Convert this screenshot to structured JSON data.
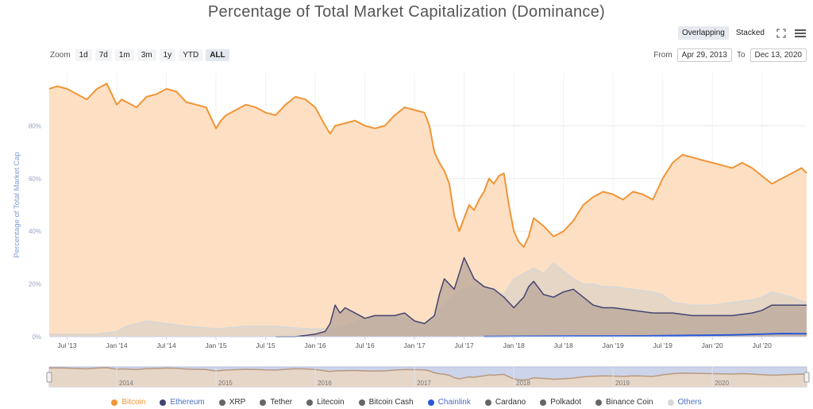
{
  "header": {
    "title": "Percentage of Total Market Capitalization (Dominance)"
  },
  "toolbar": {
    "modes": [
      "Overlapping",
      "Stacked"
    ],
    "active_mode": "Overlapping",
    "fullscreen_icon": "expand-icon",
    "menu_icon": "hamburger-menu-icon"
  },
  "zoom": {
    "label": "Zoom",
    "buttons": [
      "1d",
      "7d",
      "1m",
      "3m",
      "1y",
      "YTD",
      "ALL"
    ],
    "selected": "ALL"
  },
  "range": {
    "from_label": "From",
    "from_value": "Apr 29, 2013",
    "to_label": "To",
    "to_value": "Dec 13, 2020"
  },
  "colors": {
    "bitcoin": "#f09536",
    "bitcoin_fill": "#fde0c4",
    "ethereum": "#434470",
    "others": "#d7d7d7",
    "chainlink": "#2a5ad7",
    "grid": "#e8e8e8",
    "axis_text": "#9aa3c7"
  },
  "chart_data": {
    "type": "area",
    "title": "Percentage of Total Market Capitalization (Dominance)",
    "ylabel": "Percentage of Total Market Cap",
    "ylim": [
      0,
      100
    ],
    "y_ticks": [
      "0%",
      "20%",
      "40%",
      "60%",
      "80%"
    ],
    "y_tick_values": [
      0,
      20,
      40,
      60,
      80
    ],
    "x_ticks": [
      "Jul '13",
      "Jan '14",
      "Jul '14",
      "Jan '15",
      "Jul '15",
      "Jan '16",
      "Jul '16",
      "Jan '17",
      "Jul '17",
      "Jan '18",
      "Jul '18",
      "Jan '19",
      "Jul '19",
      "Jan '20",
      "Jul '20"
    ],
    "x_tick_values": [
      2013.5,
      2014.0,
      2014.5,
      2015.0,
      2015.5,
      2016.0,
      2016.5,
      2017.0,
      2017.5,
      2018.0,
      2018.5,
      2019.0,
      2019.5,
      2020.0,
      2020.5
    ],
    "xlim": [
      2013.32,
      2020.95
    ],
    "navigator_years": [
      "2014",
      "2015",
      "2016",
      "2017",
      "2018",
      "2019",
      "2020"
    ],
    "navigator_year_values": [
      2014,
      2015,
      2016,
      2017,
      2018,
      2019,
      2020
    ],
    "series": [
      {
        "name": "Bitcoin",
        "color": "#f09536",
        "x": [
          2013.32,
          2013.4,
          2013.5,
          2013.6,
          2013.7,
          2013.8,
          2013.9,
          2014.0,
          2014.05,
          2014.1,
          2014.2,
          2014.3,
          2014.4,
          2014.5,
          2014.6,
          2014.7,
          2014.8,
          2014.9,
          2015.0,
          2015.05,
          2015.1,
          2015.2,
          2015.3,
          2015.4,
          2015.5,
          2015.6,
          2015.7,
          2015.8,
          2015.9,
          2016.0,
          2016.1,
          2016.15,
          2016.2,
          2016.3,
          2016.4,
          2016.5,
          2016.6,
          2016.7,
          2016.8,
          2016.9,
          2017.0,
          2017.1,
          2017.15,
          2017.2,
          2017.25,
          2017.3,
          2017.35,
          2017.4,
          2017.45,
          2017.5,
          2017.55,
          2017.6,
          2017.65,
          2017.7,
          2017.75,
          2017.8,
          2017.85,
          2017.9,
          2017.95,
          2018.0,
          2018.05,
          2018.1,
          2018.15,
          2018.2,
          2018.3,
          2018.4,
          2018.5,
          2018.6,
          2018.7,
          2018.8,
          2018.9,
          2019.0,
          2019.1,
          2019.2,
          2019.3,
          2019.4,
          2019.5,
          2019.6,
          2019.7,
          2019.8,
          2019.9,
          2020.0,
          2020.1,
          2020.2,
          2020.3,
          2020.4,
          2020.5,
          2020.6,
          2020.7,
          2020.8,
          2020.9,
          2020.95
        ],
        "values": [
          94,
          95,
          94,
          92,
          90,
          94,
          96,
          88,
          90,
          89,
          87,
          91,
          92,
          94,
          93,
          89,
          88,
          87,
          79,
          82,
          84,
          86,
          88,
          87,
          85,
          84,
          88,
          91,
          90,
          87,
          80,
          77,
          80,
          81,
          82,
          80,
          79,
          80,
          84,
          87,
          86,
          85,
          80,
          70,
          66,
          63,
          58,
          46,
          40,
          45,
          50,
          48,
          52,
          55,
          60,
          58,
          61,
          62,
          50,
          40,
          36,
          34,
          38,
          45,
          42,
          38,
          40,
          44,
          50,
          53,
          55,
          54,
          52,
          55,
          54,
          52,
          60,
          66,
          69,
          68,
          67,
          66,
          65,
          64,
          66,
          64,
          61,
          58,
          60,
          62,
          64,
          62
        ]
      },
      {
        "name": "Others",
        "color": "#d7d7d7",
        "x": [
          2013.32,
          2013.8,
          2014.0,
          2014.1,
          2014.3,
          2014.5,
          2014.7,
          2015.0,
          2015.3,
          2015.6,
          2015.9,
          2016.1,
          2016.3,
          2016.5,
          2016.7,
          2016.9,
          2017.0,
          2017.1,
          2017.2,
          2017.3,
          2017.4,
          2017.5,
          2017.6,
          2017.7,
          2017.8,
          2017.9,
          2018.0,
          2018.1,
          2018.2,
          2018.3,
          2018.4,
          2018.5,
          2018.6,
          2018.7,
          2018.8,
          2018.9,
          2019.0,
          2019.2,
          2019.4,
          2019.5,
          2019.6,
          2019.8,
          2020.0,
          2020.2,
          2020.4,
          2020.5,
          2020.6,
          2020.8,
          2020.95
        ],
        "values": [
          1,
          1,
          2,
          4,
          6,
          5,
          4,
          3,
          4,
          4,
          3,
          3,
          4,
          7,
          8,
          7,
          6,
          5,
          8,
          12,
          16,
          18,
          19,
          18,
          17,
          16,
          22,
          24,
          26,
          24,
          28,
          25,
          22,
          20,
          20,
          19,
          19,
          18,
          17,
          16,
          13,
          12,
          12,
          13,
          14,
          15,
          17,
          15,
          13
        ]
      },
      {
        "name": "Ethereum",
        "color": "#434470",
        "x": [
          2015.6,
          2015.8,
          2016.0,
          2016.1,
          2016.15,
          2016.2,
          2016.25,
          2016.3,
          2016.4,
          2016.5,
          2016.6,
          2016.7,
          2016.8,
          2016.9,
          2017.0,
          2017.1,
          2017.2,
          2017.25,
          2017.3,
          2017.4,
          2017.45,
          2017.5,
          2017.55,
          2017.6,
          2017.7,
          2017.8,
          2017.9,
          2018.0,
          2018.05,
          2018.1,
          2018.15,
          2018.2,
          2018.3,
          2018.4,
          2018.5,
          2018.6,
          2018.7,
          2018.8,
          2018.9,
          2019.0,
          2019.2,
          2019.4,
          2019.6,
          2019.8,
          2020.0,
          2020.2,
          2020.4,
          2020.5,
          2020.6,
          2020.8,
          2020.95
        ],
        "values": [
          0,
          0,
          1,
          2,
          5,
          12,
          9,
          11,
          9,
          7,
          8,
          8,
          8,
          9,
          6,
          5,
          8,
          16,
          22,
          18,
          24,
          30,
          26,
          22,
          19,
          18,
          15,
          11,
          13,
          15,
          19,
          21,
          16,
          15,
          17,
          18,
          15,
          12,
          11,
          11,
          10,
          9,
          9,
          8,
          8,
          8,
          9,
          10,
          12,
          12,
          12
        ]
      },
      {
        "name": "Chainlink",
        "color": "#2a5ad7",
        "x": [
          2017.7,
          2018.5,
          2019.3,
          2019.8,
          2020.2,
          2020.5,
          2020.7,
          2020.95
        ],
        "values": [
          0.1,
          0.2,
          0.3,
          0.5,
          0.7,
          1.0,
          1.2,
          1.1
        ]
      }
    ],
    "legend": [
      "Bitcoin",
      "Ethereum",
      "XRP",
      "Tether",
      "Litecoin",
      "Bitcoin Cash",
      "Chainlink",
      "Cardano",
      "Polkadot",
      "Binance Coin",
      "Others"
    ],
    "legend_colors": [
      "#f09536",
      "#434470",
      "#666666",
      "#666666",
      "#666666",
      "#666666",
      "#2a5ad7",
      "#666666",
      "#666666",
      "#666666",
      "#d7d7d7"
    ],
    "legend_position": "bottom"
  }
}
